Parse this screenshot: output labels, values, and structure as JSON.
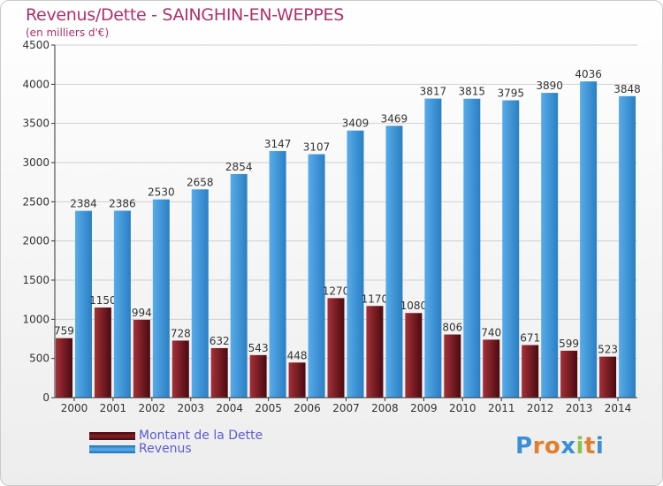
{
  "chart_data": {
    "type": "bar",
    "title": "Revenus/Dette - SAINGHIN-EN-WEPPES",
    "subtitle": "(en milliers d'€)",
    "categories": [
      "2000",
      "2001",
      "2002",
      "2003",
      "2004",
      "2005",
      "2006",
      "2007",
      "2008",
      "2009",
      "2010",
      "2011",
      "2012",
      "2013",
      "2014"
    ],
    "series": [
      {
        "name": "Montant de la Dette",
        "values": [
          759,
          1150,
          994,
          728,
          632,
          543,
          448,
          1270,
          1170,
          1080,
          806,
          740,
          671,
          599,
          523
        ],
        "labels": [
          "759",
          "1150",
          "994",
          "728",
          "632",
          "543",
          "448",
          "1270",
          "1170",
          "1080",
          "806",
          "740",
          "671",
          "599",
          "523"
        ],
        "color": "#8b1f28"
      },
      {
        "name": "Revenus",
        "values": [
          2384,
          2386,
          2530,
          2658,
          2854,
          3147,
          3107,
          3409,
          3469,
          3817,
          3815,
          3795,
          3890,
          4036,
          3848
        ],
        "labels": [
          "2384",
          "2386",
          "2530",
          "2658",
          "2854",
          "3147",
          "3107",
          "3409",
          "3469",
          "3817",
          "3815",
          "3795",
          "3890",
          "4036",
          "3848"
        ],
        "color": "#3d95d8"
      }
    ],
    "yticks": [
      0,
      500,
      1000,
      1500,
      2000,
      2500,
      3000,
      3500,
      4000,
      4500
    ],
    "ylim": [
      0,
      4500
    ],
    "grid": true,
    "legend_position": "bottom-left"
  },
  "logo": {
    "letters": [
      "P",
      "r",
      "o",
      "x",
      "i",
      "t",
      "i"
    ],
    "colors": [
      "#3a8fd6",
      "#e07f2e",
      "#e07f2e",
      "#3a8fd6",
      "#8bc34a",
      "#e07f2e",
      "#3a8fd6"
    ]
  }
}
